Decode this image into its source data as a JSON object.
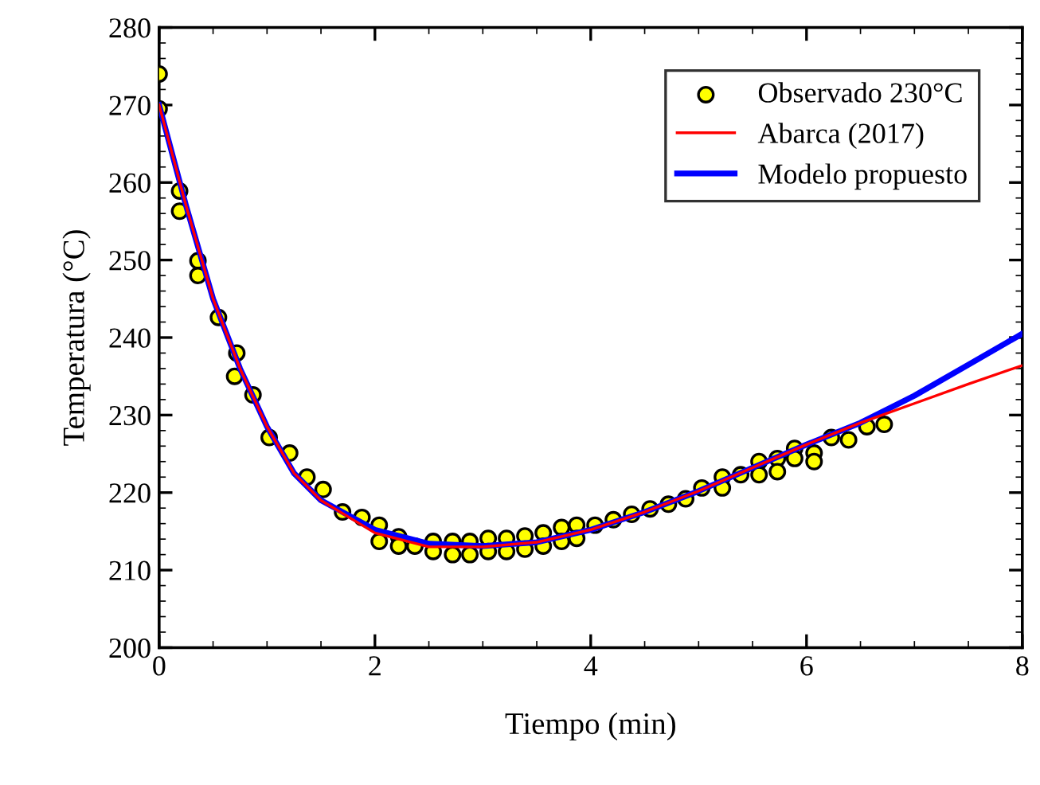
{
  "chart_data": {
    "type": "line",
    "xlabel": "Tiempo (min)",
    "ylabel": "Temperatura (°C)",
    "xlim": [
      0,
      8
    ],
    "ylim": [
      200,
      280
    ],
    "xticks": [
      0,
      2,
      4,
      6,
      8
    ],
    "yticks": [
      200,
      210,
      220,
      230,
      240,
      250,
      260,
      270,
      280
    ],
    "grid": false,
    "legend": "top right",
    "series": [
      {
        "name": "Observado 230°C",
        "type": "scatter",
        "marker": "circle",
        "color": "#ffff00",
        "x": [
          0,
          0,
          0.19,
          0.19,
          0.36,
          0.36,
          0.55,
          0.7,
          0.72,
          0.87,
          1.02,
          1.21,
          1.37,
          1.52,
          1.7,
          1.88,
          2.04,
          2.04,
          2.22,
          2.22,
          2.37,
          2.54,
          2.54,
          2.72,
          2.72,
          2.88,
          2.88,
          3.05,
          3.05,
          3.22,
          3.22,
          3.39,
          3.39,
          3.56,
          3.56,
          3.73,
          3.73,
          3.87,
          3.87,
          4.04,
          4.21,
          4.38,
          4.55,
          4.72,
          4.88,
          5.03,
          5.22,
          5.22,
          5.39,
          5.56,
          5.56,
          5.73,
          5.73,
          5.89,
          5.89,
          6.07,
          6.07,
          6.23,
          6.39,
          6.56,
          6.72
        ],
        "values": [
          274,
          269.5,
          258.9,
          256.3,
          249.9,
          248,
          242.6,
          235,
          238,
          232.6,
          227.1,
          225.1,
          222,
          220.4,
          217.5,
          216.8,
          215.8,
          213.7,
          214.3,
          213.1,
          213.1,
          213.7,
          212.4,
          213.7,
          212,
          213.7,
          212,
          214.1,
          212.4,
          214.1,
          212.4,
          214.4,
          212.7,
          214.8,
          213.1,
          215.5,
          213.7,
          215.8,
          214.1,
          215.8,
          216.5,
          217.2,
          217.9,
          218.5,
          219.2,
          220.6,
          222,
          220.6,
          222.3,
          224,
          222.3,
          224.4,
          222.7,
          225.7,
          224.4,
          225.1,
          224,
          227.1,
          226.8,
          228.5,
          228.8
        ]
      },
      {
        "name": "Abarca (2017)",
        "marker": "none",
        "color": "#ff0000",
        "x": [
          0,
          0.25,
          0.5,
          0.75,
          1,
          1.25,
          1.5,
          2,
          2.5,
          3,
          3.5,
          4,
          4.5,
          5,
          5.5,
          6,
          6.5,
          7,
          7.5,
          8
        ],
        "values": [
          270,
          257,
          245,
          236,
          228.5,
          222.5,
          219,
          214.8,
          213,
          213,
          213.6,
          215.2,
          217.5,
          220.2,
          223.2,
          226.2,
          229,
          231.5,
          234,
          236.4
        ]
      },
      {
        "name": "Modelo propuesto",
        "marker": "none",
        "color": "#0000ff",
        "x": [
          0,
          0.25,
          0.5,
          0.75,
          1,
          1.25,
          1.5,
          2,
          2.5,
          3,
          3.5,
          4,
          4.5,
          5,
          5.5,
          6,
          6.5,
          7,
          7.5,
          8
        ],
        "values": [
          270,
          257,
          245,
          236,
          228.5,
          222.5,
          219,
          215.2,
          213.4,
          213.1,
          213.6,
          215.2,
          217.5,
          220.2,
          223.2,
          226.2,
          229,
          232.5,
          236.5,
          240.5
        ]
      }
    ]
  }
}
